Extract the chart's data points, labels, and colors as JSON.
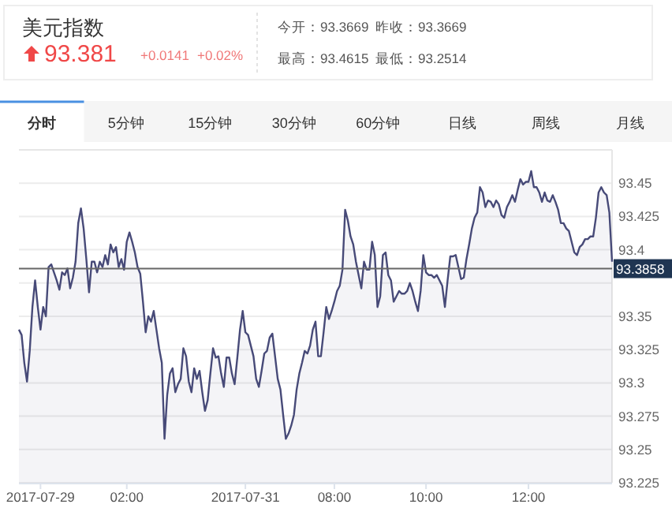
{
  "chart_data": {
    "type": "area",
    "title": "美元指数",
    "annotations": [
      "93.381",
      "+0.0141",
      "+0.02%",
      "今开：93.3669",
      "昨收：93.3669",
      "最高：93.4615",
      "最低：93.2514",
      "分时",
      "5分钟",
      "15分钟",
      "30分钟",
      "60分钟",
      "日线",
      "周线",
      "月线"
    ],
    "categories": [
      null,
      null,
      null,
      null,
      null,
      null,
      null,
      null,
      "2017-07-29",
      null,
      null,
      null,
      null,
      null,
      null,
      null,
      null,
      null,
      null,
      null,
      null,
      null,
      null,
      null,
      null,
      null,
      null,
      null,
      null,
      null,
      null,
      null,
      null,
      null,
      null,
      null,
      null,
      null,
      null,
      null,
      "02:00",
      null,
      null,
      null,
      null,
      null,
      null,
      null,
      null,
      null,
      null,
      null,
      null,
      null,
      null,
      null,
      null,
      null,
      null,
      null,
      null,
      null,
      null,
      null,
      null,
      null,
      null,
      null,
      null,
      null,
      null,
      null,
      null,
      null,
      null,
      null,
      null,
      null,
      null,
      null,
      null,
      null,
      null,
      null,
      "2017-07-31",
      null,
      null,
      null,
      null,
      null,
      null,
      null,
      null,
      null,
      null,
      null,
      null,
      null,
      null,
      null,
      null,
      null,
      null,
      null,
      null,
      null,
      null,
      null,
      null,
      null,
      null,
      null,
      null,
      null,
      null,
      null,
      null,
      "08:00",
      null,
      null,
      null,
      null,
      null,
      null,
      null,
      null,
      null,
      null,
      null,
      null,
      null,
      null,
      null,
      null,
      null,
      null,
      null,
      null,
      null,
      null,
      null,
      null,
      null,
      null,
      null,
      null,
      null,
      null,
      null,
      null,
      null,
      "10:00",
      null,
      null,
      null,
      null,
      null,
      null,
      null,
      null,
      null,
      null,
      null,
      null,
      null,
      null,
      null,
      null,
      null,
      null,
      null,
      null,
      null,
      null,
      null,
      null,
      null,
      null,
      null,
      null,
      null,
      null,
      null,
      null,
      null,
      null,
      null,
      null,
      null,
      "12:00",
      null,
      null,
      null,
      null,
      null,
      null,
      null,
      null,
      null,
      null,
      null,
      null,
      null,
      null,
      null,
      null,
      null,
      null,
      null,
      null,
      null,
      null,
      null,
      null,
      null,
      null,
      null,
      null,
      null,
      null,
      null
    ],
    "series": [
      {
        "color": "#474a78",
        "values": [
          93.34,
          93.336,
          93.315,
          93.301,
          93.324,
          93.357,
          93.377,
          93.357,
          93.34,
          93.357,
          93.35,
          93.387,
          93.389,
          93.383,
          93.377,
          93.37,
          93.383,
          93.381,
          93.386,
          93.371,
          93.379,
          93.391,
          93.42,
          93.431,
          93.416,
          93.393,
          93.368,
          93.391,
          93.391,
          93.383,
          93.391,
          93.387,
          93.396,
          93.389,
          93.404,
          93.398,
          93.402,
          93.387,
          93.393,
          93.385,
          93.406,
          93.413,
          93.406,
          93.398,
          93.387,
          93.382,
          93.361,
          93.338,
          93.35,
          93.346,
          93.354,
          93.34,
          93.326,
          93.315,
          93.258,
          93.291,
          93.307,
          93.311,
          93.293,
          93.299,
          93.303,
          93.326,
          93.32,
          93.301,
          93.293,
          93.311,
          93.303,
          93.309,
          93.293,
          93.279,
          93.287,
          93.307,
          93.326,
          93.319,
          93.32,
          93.307,
          93.297,
          93.319,
          93.319,
          93.307,
          93.299,
          93.319,
          93.34,
          93.354,
          93.338,
          93.336,
          93.328,
          93.32,
          93.303,
          93.297,
          93.309,
          93.322,
          93.324,
          93.334,
          93.337,
          93.32,
          93.303,
          93.295,
          93.276,
          93.258,
          93.262,
          93.268,
          93.276,
          93.295,
          93.307,
          93.315,
          93.324,
          93.322,
          93.328,
          93.34,
          93.346,
          93.32,
          93.32,
          93.338,
          93.357,
          93.348,
          93.354,
          93.361,
          93.369,
          93.373,
          93.385,
          93.43,
          93.422,
          93.41,
          93.404,
          93.391,
          93.381,
          93.371,
          93.391,
          93.385,
          93.385,
          93.406,
          93.396,
          93.357,
          93.365,
          93.396,
          93.398,
          93.381,
          93.377,
          93.361,
          93.365,
          93.369,
          93.367,
          93.367,
          93.369,
          93.375,
          93.369,
          93.361,
          93.354,
          93.369,
          93.396,
          93.383,
          93.381,
          93.381,
          93.379,
          93.381,
          93.377,
          93.373,
          93.357,
          93.377,
          93.395,
          93.395,
          93.396,
          93.387,
          93.378,
          93.379,
          93.393,
          93.404,
          93.416,
          93.424,
          93.428,
          93.447,
          93.443,
          93.432,
          93.437,
          93.436,
          93.432,
          93.437,
          93.434,
          93.426,
          93.424,
          93.432,
          93.436,
          93.441,
          93.436,
          93.445,
          93.453,
          93.449,
          93.451,
          93.451,
          93.459,
          93.447,
          93.447,
          93.443,
          93.436,
          93.443,
          93.437,
          93.436,
          93.441,
          93.436,
          93.43,
          93.42,
          93.42,
          93.416,
          93.414,
          93.406,
          93.398,
          93.396,
          93.402,
          93.404,
          93.408,
          93.408,
          93.41,
          93.41,
          93.424,
          93.443,
          93.447,
          93.443,
          93.441,
          93.428,
          93.391
        ]
      }
    ],
    "ylim": [
      93.225,
      93.475
    ],
    "yticks": [
      93.225,
      93.25,
      93.275,
      93.3,
      93.325,
      93.35,
      {
        "value": 93.375,
        "label": null
      },
      93.4,
      93.425,
      93.45
    ],
    "ref_lines": [
      {
        "axis": "y",
        "value": 93.3858,
        "label": "93.3858",
        "color": "#666666"
      }
    ],
    "grid": "y"
  }
}
